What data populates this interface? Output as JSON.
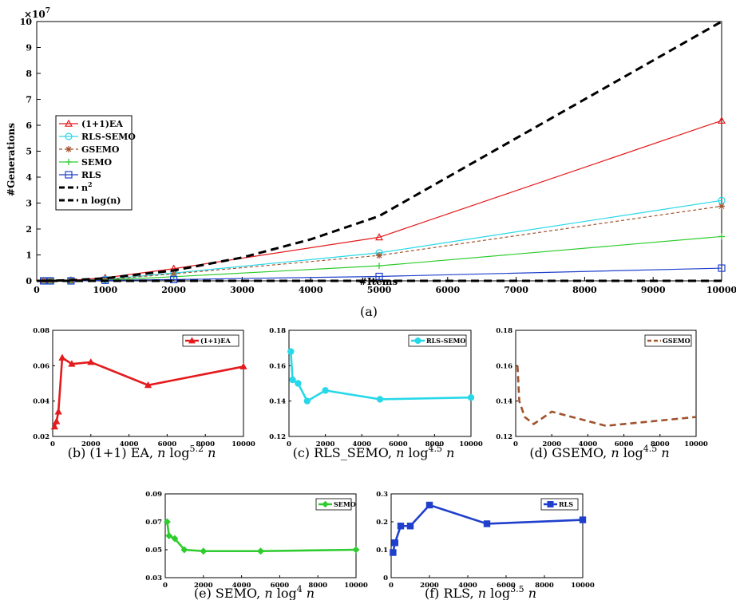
{
  "main": {
    "caption": "(a)",
    "xlabel": "#Items",
    "ylabel": "#Generations",
    "exponent": "×10",
    "exponent_power": "7",
    "xlim": [
      0,
      10000
    ],
    "ylim": [
      0,
      10
    ],
    "xticks": [
      0,
      1000,
      2000,
      3000,
      4000,
      5000,
      6000,
      7000,
      8000,
      9000,
      10000
    ],
    "yticks": [
      0,
      1,
      2,
      3,
      4,
      5,
      6,
      7,
      8,
      9,
      10
    ]
  },
  "chart_data": [
    {
      "type": "line",
      "xlabel": "#Items",
      "ylabel": "#Generations (×10^7)",
      "xlim": [
        0,
        10000
      ],
      "ylim": [
        0,
        10
      ],
      "legend": "top-left",
      "series": [
        {
          "name": "(1+1)EA",
          "color": "#e41a1c",
          "marker": "triangle",
          "dash": "",
          "x": [
            100,
            200,
            500,
            1000,
            2000,
            5000,
            10000
          ],
          "y": [
            0.0,
            0.0,
            0.02,
            0.12,
            0.47,
            1.68,
            6.18
          ]
        },
        {
          "name": "RLS-SEMO",
          "color": "#29d8e8",
          "marker": "circle",
          "dash": "",
          "x": [
            100,
            200,
            500,
            1000,
            2000,
            5000,
            10000
          ],
          "y": [
            0.0,
            0.0,
            0.01,
            0.06,
            0.3,
            1.08,
            3.1
          ]
        },
        {
          "name": "GSEMO",
          "color": "#a0522d",
          "marker": "star",
          "dash": "4,3",
          "x": [
            100,
            200,
            500,
            1000,
            2000,
            5000,
            10000
          ],
          "y": [
            0.0,
            0.0,
            0.01,
            0.05,
            0.27,
            0.98,
            2.88
          ]
        },
        {
          "name": "SEMO",
          "color": "#2ecc2e",
          "marker": "plus",
          "dash": "",
          "x": [
            100,
            200,
            500,
            1000,
            2000,
            5000,
            10000
          ],
          "y": [
            0.0,
            0.0,
            0.01,
            0.03,
            0.16,
            0.58,
            1.71
          ]
        },
        {
          "name": "RLS",
          "color": "#1f3fcc",
          "marker": "square",
          "dash": "",
          "x": [
            100,
            200,
            500,
            1000,
            2000,
            5000,
            10000
          ],
          "y": [
            0.0,
            0.0,
            0.0,
            0.02,
            0.05,
            0.17,
            0.49
          ]
        },
        {
          "name": "n2",
          "color": "#000000",
          "marker": "none",
          "dash": "10,6",
          "width": 3,
          "x": [
            100,
            500,
            1000,
            2000,
            3000,
            4000,
            5000,
            10000
          ],
          "y": [
            0.001,
            0.025,
            0.1,
            0.4,
            0.9,
            1.6,
            2.5,
            10.0
          ]
        },
        {
          "name": "n log(n)",
          "color": "#000000",
          "marker": "none",
          "dash": "10,6",
          "width": 3,
          "x": [
            0,
            10000
          ],
          "y": [
            0.0,
            0.0
          ]
        }
      ]
    },
    {
      "type": "line",
      "caption_label": "(b) (1+1) EA,",
      "caption_power": "5.2",
      "xlim": [
        0,
        10000
      ],
      "ylim": [
        0.02,
        0.08
      ],
      "legend": "top-right",
      "xticks": [
        0,
        2000,
        4000,
        6000,
        8000,
        10000
      ],
      "yticks": [
        "0.02",
        "0.04",
        "0.06",
        "0.08"
      ],
      "series": [
        {
          "name": "(1+1)EA",
          "color": "#e41a1c",
          "marker": "triangle-filled",
          "dash": "",
          "x": [
            100,
            200,
            300,
            500,
            1000,
            2000,
            5000,
            10000
          ],
          "y": [
            0.0255,
            0.0285,
            0.034,
            0.0645,
            0.061,
            0.062,
            0.049,
            0.0595
          ]
        }
      ]
    },
    {
      "type": "line",
      "caption_label": "(c) RLS_SEMO,",
      "caption_power": "4.5",
      "xlim": [
        0,
        10000
      ],
      "ylim": [
        0.12,
        0.18
      ],
      "legend": "top-right",
      "xticks": [
        0,
        2000,
        4000,
        6000,
        8000,
        10000
      ],
      "yticks": [
        "0.12",
        "0.14",
        "0.16",
        "0.18"
      ],
      "series": [
        {
          "name": "RLS-SEMO",
          "color": "#29d8e8",
          "marker": "circle-filled",
          "dash": "",
          "x": [
            100,
            200,
            500,
            1000,
            2000,
            5000,
            10000
          ],
          "y": [
            0.168,
            0.152,
            0.15,
            0.14,
            0.146,
            0.141,
            0.142
          ]
        }
      ]
    },
    {
      "type": "line",
      "caption_label": "(d) GSEMO,",
      "caption_power": "4.5",
      "xlim": [
        0,
        10000
      ],
      "ylim": [
        0.12,
        0.18
      ],
      "legend": "top-right",
      "xticks": [
        0,
        2000,
        4000,
        6000,
        8000,
        10000
      ],
      "yticks": [
        "0.12",
        "0.14",
        "0.16",
        "0.18"
      ],
      "series": [
        {
          "name": "GSEMO",
          "color": "#a0522d",
          "marker": "none",
          "dash": "8,5",
          "x": [
            100,
            200,
            500,
            1000,
            2000,
            5000,
            10000
          ],
          "y": [
            0.16,
            0.14,
            0.131,
            0.127,
            0.134,
            0.126,
            0.131
          ]
        }
      ]
    },
    {
      "type": "line",
      "caption_label": "(e) SEMO,",
      "caption_power": "4",
      "xlim": [
        0,
        10000
      ],
      "ylim": [
        0.03,
        0.09
      ],
      "legend": "top-right",
      "xticks": [
        0,
        2000,
        4000,
        6000,
        8000,
        10000
      ],
      "yticks": [
        "0.03",
        "0.05",
        "0.07",
        "0.09"
      ],
      "series": [
        {
          "name": "SEMO",
          "color": "#2ecc2e",
          "marker": "diamond-filled",
          "dash": "",
          "x": [
            100,
            200,
            500,
            1000,
            2000,
            5000,
            10000
          ],
          "y": [
            0.07,
            0.06,
            0.058,
            0.05,
            0.049,
            0.049,
            0.05
          ]
        }
      ]
    },
    {
      "type": "line",
      "caption_label": "(f) RLS,",
      "caption_power": "3.5",
      "xlim": [
        0,
        10000
      ],
      "ylim": [
        0,
        0.3
      ],
      "legend": "top-right",
      "xticks": [
        0,
        2000,
        4000,
        6000,
        8000,
        10000
      ],
      "yticks": [
        "0",
        "0.1",
        "0.2",
        "0.3"
      ],
      "series": [
        {
          "name": "RLS",
          "color": "#1f3fcc",
          "marker": "square-filled",
          "dash": "",
          "x": [
            100,
            200,
            500,
            1000,
            2000,
            5000,
            10000
          ],
          "y": [
            0.09,
            0.125,
            0.185,
            0.185,
            0.26,
            0.193,
            0.207
          ]
        }
      ]
    }
  ]
}
